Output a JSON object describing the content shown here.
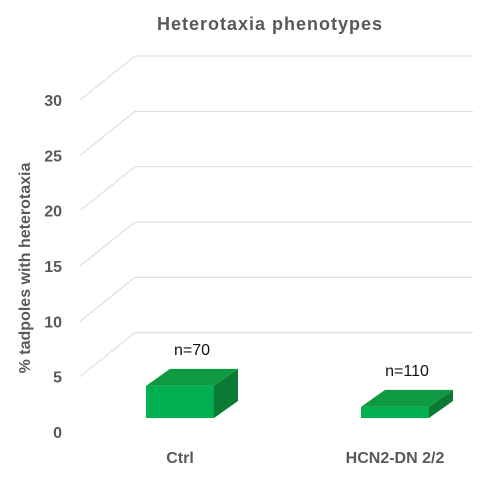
{
  "chart_data": {
    "type": "bar",
    "title": "Heterotaxia phenotypes",
    "xlabel": "",
    "ylabel": "% tadpoles with heterotaxia",
    "categories": [
      "Ctrl",
      "HCN2-DN 2/2"
    ],
    "values": [
      2.9,
      1.0
    ],
    "data_labels": [
      "n=70",
      "n=110"
    ],
    "ylim": [
      0,
      30
    ],
    "yticks": [
      "0",
      "5",
      "10",
      "15",
      "20",
      "25",
      "30"
    ],
    "grid": true,
    "legend": "none",
    "style": "3d",
    "colors": {
      "bar_front": "#00b050",
      "bar_top": "#0f9a42",
      "bar_side": "#0b7a35",
      "grid": "#d9d9d9",
      "text": "#595959"
    }
  }
}
